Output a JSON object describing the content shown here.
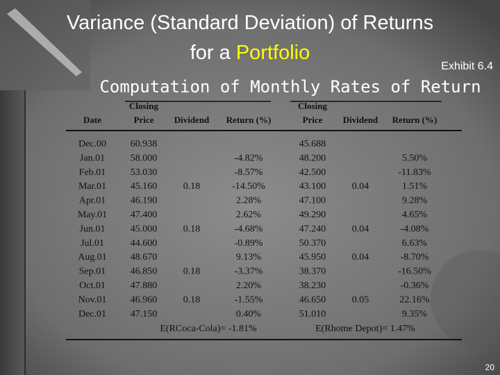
{
  "slide": {
    "title_line1": "Variance (Standard Deviation) of Returns",
    "title_line2_prefix": "for a",
    "title_line2_highlight": "Portfolio",
    "exhibit": "Exhibit 6.4",
    "subtitle": "Computation of Monthly Rates of Return",
    "page_number": "20"
  },
  "table": {
    "headers": [
      [
        "Date"
      ],
      [
        "Closing",
        "Price"
      ],
      [
        "Dividend"
      ],
      [
        "Return (%)"
      ],
      [
        "Closing",
        "Price"
      ],
      [
        "Dividend"
      ],
      [
        "Return (%)"
      ]
    ],
    "rows": [
      {
        "date": "Dec.00",
        "ko_price": "60.938",
        "hd_price": "45.688"
      },
      {
        "date": "Jan.01",
        "ko_price": "58.000",
        "ko_return": "-4.82%",
        "hd_price": "48.200",
        "hd_return": "5.50%"
      },
      {
        "date": "Feb.01",
        "ko_price": "53.030",
        "ko_return": "-8.57%",
        "hd_price": "42.500",
        "hd_return": "-11.83%"
      },
      {
        "date": "Mar.01",
        "ko_price": "45.160",
        "ko_div": "0.18",
        "ko_return": "-14.50%",
        "hd_price": "43.100",
        "hd_div": "0.04",
        "hd_return": "1.51%"
      },
      {
        "date": "Apr.01",
        "ko_price": "46.190",
        "ko_return": "2.28%",
        "hd_price": "47.100",
        "hd_return": "9.28%"
      },
      {
        "date": "May.01",
        "ko_price": "47.400",
        "ko_return": "2.62%",
        "hd_price": "49.290",
        "hd_return": "4.65%"
      },
      {
        "date": "Jun.01",
        "ko_price": "45.000",
        "ko_div": "0.18",
        "ko_return": "-4.68%",
        "hd_price": "47.240",
        "hd_div": "0.04",
        "hd_return": "-4.08%"
      },
      {
        "date": "Jul.01",
        "ko_price": "44.600",
        "ko_return": "-0.89%",
        "hd_price": "50.370",
        "hd_return": "6.63%"
      },
      {
        "date": "Aug.01",
        "ko_price": "48.670",
        "ko_return": "9.13%",
        "hd_price": "45.950",
        "hd_div": "0.04",
        "hd_return": "-8.70%"
      },
      {
        "date": "Sep.01",
        "ko_price": "46.850",
        "ko_div": "0.18",
        "ko_return": "-3.37%",
        "hd_price": "38.370",
        "hd_return": "-16.50%"
      },
      {
        "date": "Oct.01",
        "ko_price": "47.880",
        "ko_return": "2.20%",
        "hd_price": "38.230",
        "hd_return": "-0.36%"
      },
      {
        "date": "Nov.01",
        "ko_price": "46.960",
        "ko_div": "0.18",
        "ko_return": "-1.55%",
        "hd_price": "46.650",
        "hd_div": "0.05",
        "hd_return": "22.16%"
      },
      {
        "date": "Dec.01",
        "ko_price": "47.150",
        "ko_return": "0.40%",
        "hd_price": "51.010",
        "hd_return": "9.35%"
      }
    ],
    "footer": [
      "E(RCoca-Cola)= -1.81%",
      "E(Rhome Depot)= 1.47%"
    ]
  }
}
